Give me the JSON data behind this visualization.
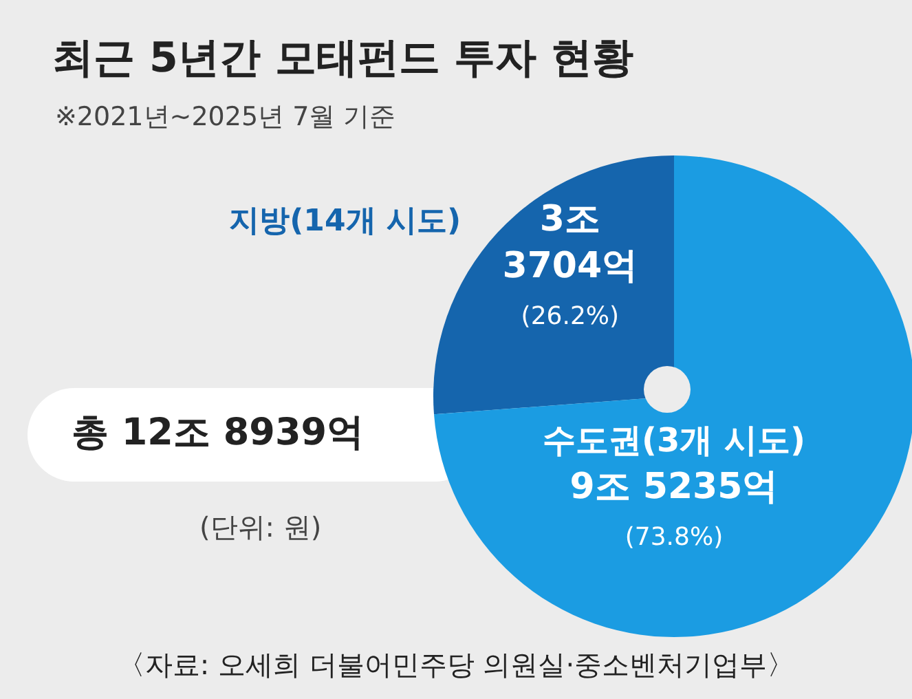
{
  "chart_data": {
    "type": "pie",
    "title": "최근 5년간 모태펀드 투자 현황",
    "subtitle": "※2021년~2025년 7월 기준",
    "categories": [
      "지방(14개 시도)",
      "수도권(3개 시도)"
    ],
    "values": [
      26.2,
      73.8
    ],
    "colors": [
      "#1565ad",
      "#1b9ce2"
    ],
    "value_labels": [
      "3조\n3704억\n(26.2%)",
      "9조 5235억\n(73.8%)"
    ],
    "annotations": [
      "총 12조 8939억",
      "(단위: 원)",
      "〈자료: 오세희 더불어민주당 의원실·중소벤처기업부〉"
    ]
  }
}
